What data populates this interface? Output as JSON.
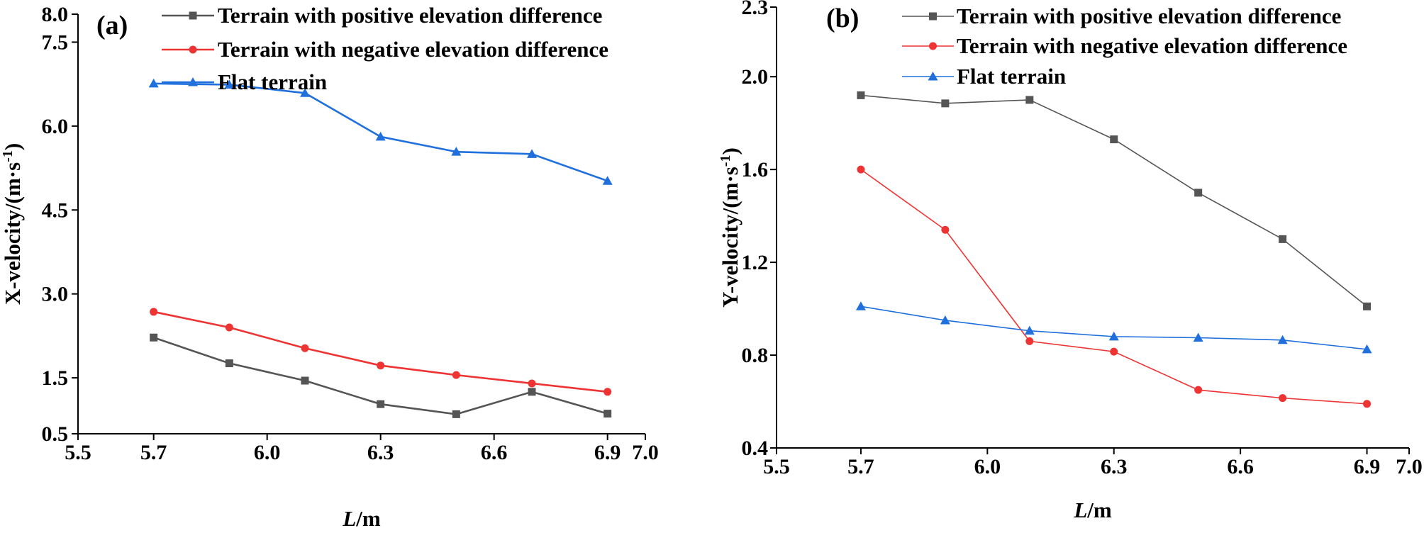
{
  "chart_data": [
    {
      "panel_label": "(a)",
      "type": "line",
      "xlabel_italic": "L",
      "xlabel_rest": "/m",
      "ylabel": "X-velocity/",
      "yunit": "(m·s",
      "yunit_sup": "-1",
      "yunit_close": ")",
      "xlim": [
        5.5,
        7.0
      ],
      "ylim": [
        0.5,
        8.0
      ],
      "xticks": [
        "5.5",
        "5.7",
        "6.0",
        "6.3",
        "6.6",
        "6.9",
        "7.0"
      ],
      "yticks": [
        "0.5",
        "1.5",
        "3.0",
        "4.5",
        "6.0",
        "7.5",
        "8.0"
      ],
      "x": [
        5.7,
        5.9,
        6.1,
        6.3,
        6.5,
        6.7,
        6.9
      ],
      "series": [
        {
          "name": "Terrain with positive elevation difference",
          "color": "#555555",
          "marker": "square",
          "values": [
            2.22,
            1.76,
            1.45,
            1.03,
            0.85,
            1.25,
            0.86
          ]
        },
        {
          "name": "Terrain with negative elevation difference",
          "color": "#ee3333",
          "marker": "circle",
          "values": [
            2.68,
            2.4,
            2.03,
            1.72,
            1.55,
            1.4,
            1.25
          ]
        },
        {
          "name": "Flat terrain",
          "color": "#1f6fdd",
          "marker": "triangle",
          "values": [
            6.76,
            6.74,
            6.59,
            5.81,
            5.54,
            5.5,
            5.02
          ]
        }
      ]
    },
    {
      "panel_label": "(b)",
      "type": "line",
      "xlabel_italic": "L",
      "xlabel_rest": "/m",
      "ylabel": "Y-velocity/",
      "yunit": "(m·s",
      "yunit_sup": "-1",
      "yunit_close": ")",
      "xlim": [
        5.5,
        7.0
      ],
      "ylim": [
        0.4,
        2.3
      ],
      "xticks": [
        "5.5",
        "5.7",
        "6.0",
        "6.3",
        "6.6",
        "6.9",
        "7.0"
      ],
      "yticks": [
        "0.4",
        "0.8",
        "1.2",
        "1.6",
        "2.0",
        "2.3"
      ],
      "x": [
        5.7,
        5.9,
        6.1,
        6.3,
        6.5,
        6.7,
        6.9
      ],
      "series": [
        {
          "name": "Terrain with positive elevation difference",
          "color": "#555555",
          "marker": "square",
          "values": [
            1.92,
            1.885,
            1.9,
            1.73,
            1.5,
            1.3,
            1.01
          ]
        },
        {
          "name": "Terrain with negative elevation difference",
          "color": "#ee3333",
          "marker": "circle",
          "values": [
            1.6,
            1.34,
            0.86,
            0.815,
            0.65,
            0.615,
            0.59
          ]
        },
        {
          "name": "Flat terrain",
          "color": "#1f6fdd",
          "marker": "triangle",
          "values": [
            1.01,
            0.95,
            0.905,
            0.88,
            0.875,
            0.865,
            0.825
          ]
        }
      ]
    }
  ]
}
